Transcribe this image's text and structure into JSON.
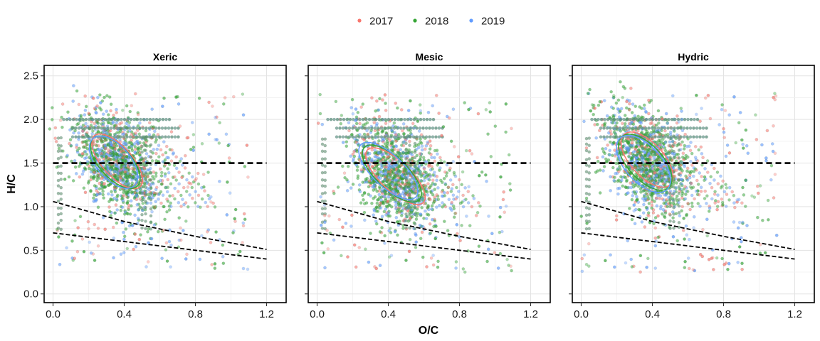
{
  "chart_data": {
    "type": "scatter",
    "xlabel": "O/C",
    "ylabel": "H/C",
    "xlim": [
      -0.05,
      1.31
    ],
    "ylim": [
      -0.1,
      2.62
    ],
    "xticks": [
      0.0,
      0.4,
      0.8,
      1.2
    ],
    "xtick_labels": [
      "0.0",
      "0.4",
      "0.8",
      "1.2"
    ],
    "yticks": [
      0.0,
      0.5,
      1.0,
      1.5,
      2.0,
      2.5
    ],
    "ytick_labels": [
      "0.0",
      "0.5",
      "1.0",
      "1.5",
      "2.0",
      "2.5"
    ],
    "grid": true,
    "legend_position": "top",
    "series": [
      {
        "name": "2017",
        "color": "#F8766D"
      },
      {
        "name": "2018",
        "color": "#35A535"
      },
      {
        "name": "2019",
        "color": "#619CFF"
      }
    ],
    "reference_lines": [
      {
        "type": "horizontal",
        "y": 1.5,
        "x_range": [
          0.0,
          1.2
        ]
      },
      {
        "type": "curve",
        "points": [
          [
            0.0,
            1.06
          ],
          [
            0.4,
            0.83
          ],
          [
            0.8,
            0.66
          ],
          [
            1.2,
            0.51
          ]
        ]
      },
      {
        "type": "curve",
        "points": [
          [
            0.0,
            0.7
          ],
          [
            0.4,
            0.6
          ],
          [
            0.8,
            0.5
          ],
          [
            1.2,
            0.4
          ]
        ]
      }
    ],
    "facets": [
      {
        "title": "Xeric",
        "ellipses": [
          {
            "series": "2017",
            "cx": 0.36,
            "cy": 1.52,
            "rx_major": 0.66,
            "ry_minor": 0.2,
            "angle_deg": 109
          },
          {
            "series": "2018",
            "cx": 0.35,
            "cy": 1.51,
            "rx_major": 0.63,
            "ry_minor": 0.21,
            "angle_deg": 108
          },
          {
            "series": "2019",
            "cx": 0.34,
            "cy": 1.51,
            "rx_major": 0.62,
            "ry_minor": 0.22,
            "angle_deg": 106
          }
        ]
      },
      {
        "title": "Mesic",
        "ellipses": [
          {
            "series": "2017",
            "cx": 0.44,
            "cy": 1.35,
            "rx_major": 0.7,
            "ry_minor": 0.21,
            "angle_deg": 113
          },
          {
            "series": "2018",
            "cx": 0.42,
            "cy": 1.38,
            "rx_major": 0.7,
            "ry_minor": 0.22,
            "angle_deg": 112
          },
          {
            "series": "2019",
            "cx": 0.4,
            "cy": 1.41,
            "rx_major": 0.7,
            "ry_minor": 0.22,
            "angle_deg": 112
          }
        ]
      },
      {
        "title": "Hydric",
        "ellipses": [
          {
            "series": "2017",
            "cx": 0.37,
            "cy": 1.54,
            "rx_major": 0.66,
            "ry_minor": 0.22,
            "angle_deg": 108
          },
          {
            "series": "2018",
            "cx": 0.36,
            "cy": 1.51,
            "rx_major": 0.67,
            "ry_minor": 0.23,
            "angle_deg": 108
          },
          {
            "series": "2019",
            "cx": 0.35,
            "cy": 1.49,
            "rx_major": 0.68,
            "ry_minor": 0.24,
            "angle_deg": 107
          }
        ]
      }
    ]
  }
}
